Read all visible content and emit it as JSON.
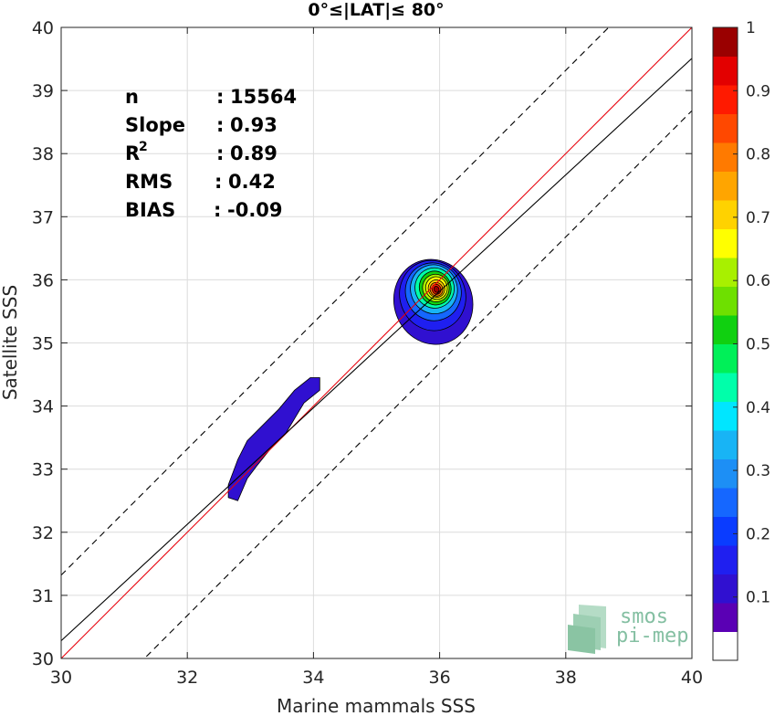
{
  "chart_data": {
    "type": "heatmap",
    "title": "0°≤|LAT|≤ 80°",
    "xlabel": "Marine mammals SSS",
    "ylabel": "Satellite SSS",
    "xlim": [
      30,
      40
    ],
    "ylim": [
      30,
      40
    ],
    "xticks": [
      "30",
      "32",
      "34",
      "36",
      "38",
      "40"
    ],
    "yticks": [
      "30",
      "31",
      "32",
      "33",
      "34",
      "35",
      "36",
      "37",
      "38",
      "39",
      "40"
    ],
    "grid": true,
    "stats": [
      {
        "label": "n",
        "sep": ":",
        "value": "15564"
      },
      {
        "label": "Slope",
        "sep": ":",
        "value": "0.93"
      },
      {
        "label": "R",
        "sup": "2",
        "sep": ":",
        "value": "0.89"
      },
      {
        "label": "RMS",
        "sep": ":",
        "value": "0.42"
      },
      {
        "label": "BIAS",
        "sep": ":",
        "value": "-0.09"
      }
    ],
    "lines": {
      "one_to_one": {
        "color": "#e8000b",
        "points": [
          [
            30,
            30
          ],
          [
            40,
            40
          ]
        ]
      },
      "regression": {
        "color": "#000000",
        "points": [
          [
            30,
            30.28
          ],
          [
            40,
            39.51
          ]
        ]
      },
      "upper_dashed": {
        "color": "#000000",
        "points": [
          [
            30,
            31.32
          ],
          [
            40,
            41.32
          ]
        ]
      },
      "lower_dashed": {
        "color": "#000000",
        "points": [
          [
            30,
            28.68
          ],
          [
            40,
            38.68
          ]
        ]
      }
    },
    "density_clusters": [
      {
        "center": [
          33.4,
          33.45
        ],
        "level": 0.1
      },
      {
        "center": [
          35.95,
          35.85
        ],
        "peak_level": 1.0
      }
    ],
    "colorbar": {
      "range": [
        0,
        1
      ],
      "ticks": [
        "0.1",
        "0.2",
        "0.3",
        "0.4",
        "0.5",
        "0.6",
        "0.7",
        "0.8",
        "0.9",
        "1"
      ],
      "colors": [
        "#ffffff",
        "#5a00b4",
        "#3010d0",
        "#1f1ff0",
        "#0a3cff",
        "#1567ff",
        "#1d8ff5",
        "#18b4f5",
        "#00e6ff",
        "#00ffaa",
        "#00f058",
        "#10d010",
        "#6ee000",
        "#a8f000",
        "#ffff00",
        "#ffd200",
        "#ffa500",
        "#ff7a00",
        "#ff4800",
        "#ff1a00",
        "#e30000",
        "#9a0000"
      ]
    }
  },
  "logo": {
    "line1": "smos",
    "line2": "pi-mep"
  }
}
